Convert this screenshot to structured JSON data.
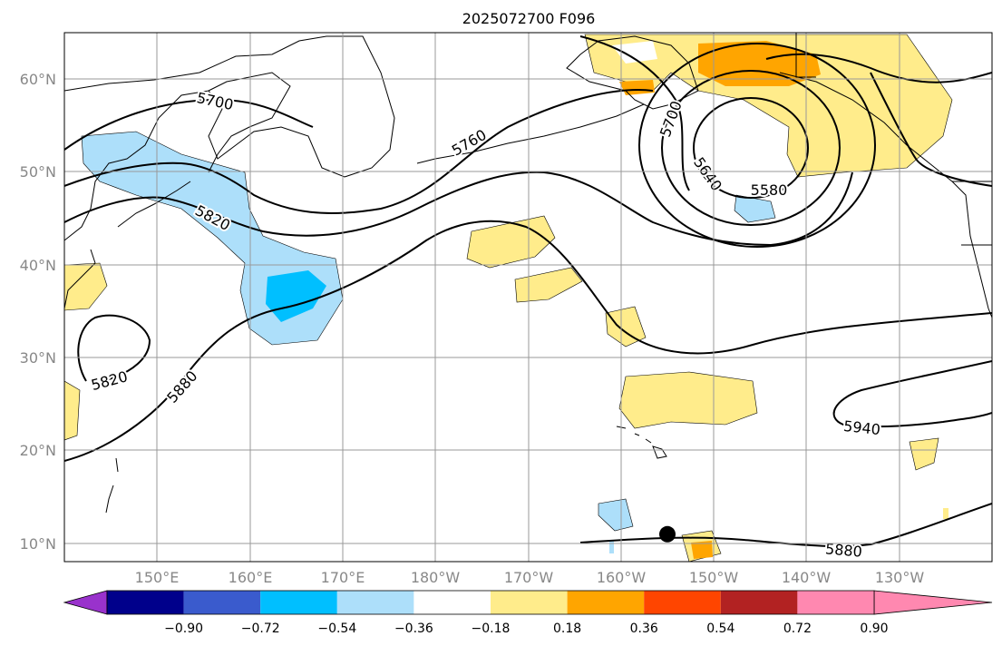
{
  "title": "2025072700 F096",
  "colors": {
    "purple": "#9932CC",
    "navy": "#00008B",
    "royal": "#3A5BCD",
    "cyan": "#00BFFF",
    "lightblue": "#ADDFFA",
    "white": "#FFFFFF",
    "yellow": "#FFEC8B",
    "orange": "#FFA500",
    "redorange": "#FF4500",
    "darkred": "#B22222",
    "pink": "#FF88B0"
  },
  "lat_ticks": [
    "60°N",
    "50°N",
    "40°N",
    "30°N",
    "20°N",
    "10°N"
  ],
  "lon_ticks": [
    "150°E",
    "160°E",
    "170°E",
    "180°W",
    "170°W",
    "160°W",
    "150°W",
    "140°W",
    "130°W"
  ],
  "contour_labels": [
    "5700",
    "5760",
    "5700",
    "5640",
    "5580",
    "5820",
    "5820",
    "5880",
    "5940",
    "5880"
  ],
  "colorbar": {
    "ticks": [
      "−0.90",
      "−0.72",
      "−0.54",
      "−0.36",
      "−0.18",
      "0.18",
      "0.36",
      "0.54",
      "0.72",
      "0.90"
    ],
    "bins": [
      "purple",
      "navy",
      "royal",
      "cyan",
      "lightblue",
      "white",
      "yellow",
      "orange",
      "redorange",
      "darkred",
      "pink"
    ]
  },
  "marker": {
    "name": "storm-center",
    "lon": -155,
    "lat": 11
  }
}
